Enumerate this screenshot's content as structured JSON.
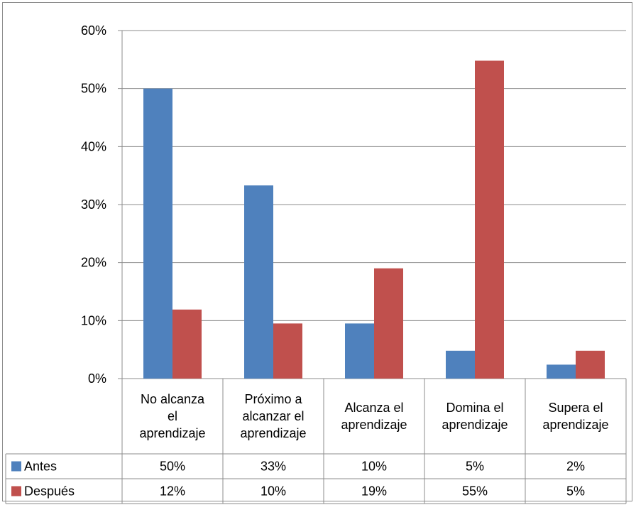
{
  "chart_data": {
    "type": "bar",
    "categories": [
      [
        "No alcanza",
        "el",
        "aprendizaje"
      ],
      [
        "Próximo a",
        "alcanzar el",
        "aprendizaje"
      ],
      [
        "Alcanza el",
        "aprendizaje"
      ],
      [
        "Domina el",
        "aprendizaje"
      ],
      [
        "Supera el",
        "aprendizaje"
      ]
    ],
    "series": [
      {
        "name": "Antes",
        "color": "#4f81bd",
        "values": [
          0.5,
          0.333,
          0.095,
          0.048,
          0.024
        ],
        "table_labels": [
          "50%",
          "33%",
          "10%",
          "5%",
          "2%"
        ]
      },
      {
        "name": "Después",
        "color": "#c0504d",
        "values": [
          0.119,
          0.095,
          0.19,
          0.548,
          0.048
        ],
        "table_labels": [
          "12%",
          "10%",
          "19%",
          "55%",
          "5%"
        ]
      }
    ],
    "y_ticks": [
      "0%",
      "10%",
      "20%",
      "30%",
      "40%",
      "50%",
      "60%"
    ],
    "ylim": [
      0,
      0.6
    ],
    "grid": true,
    "legend": "data-table"
  }
}
